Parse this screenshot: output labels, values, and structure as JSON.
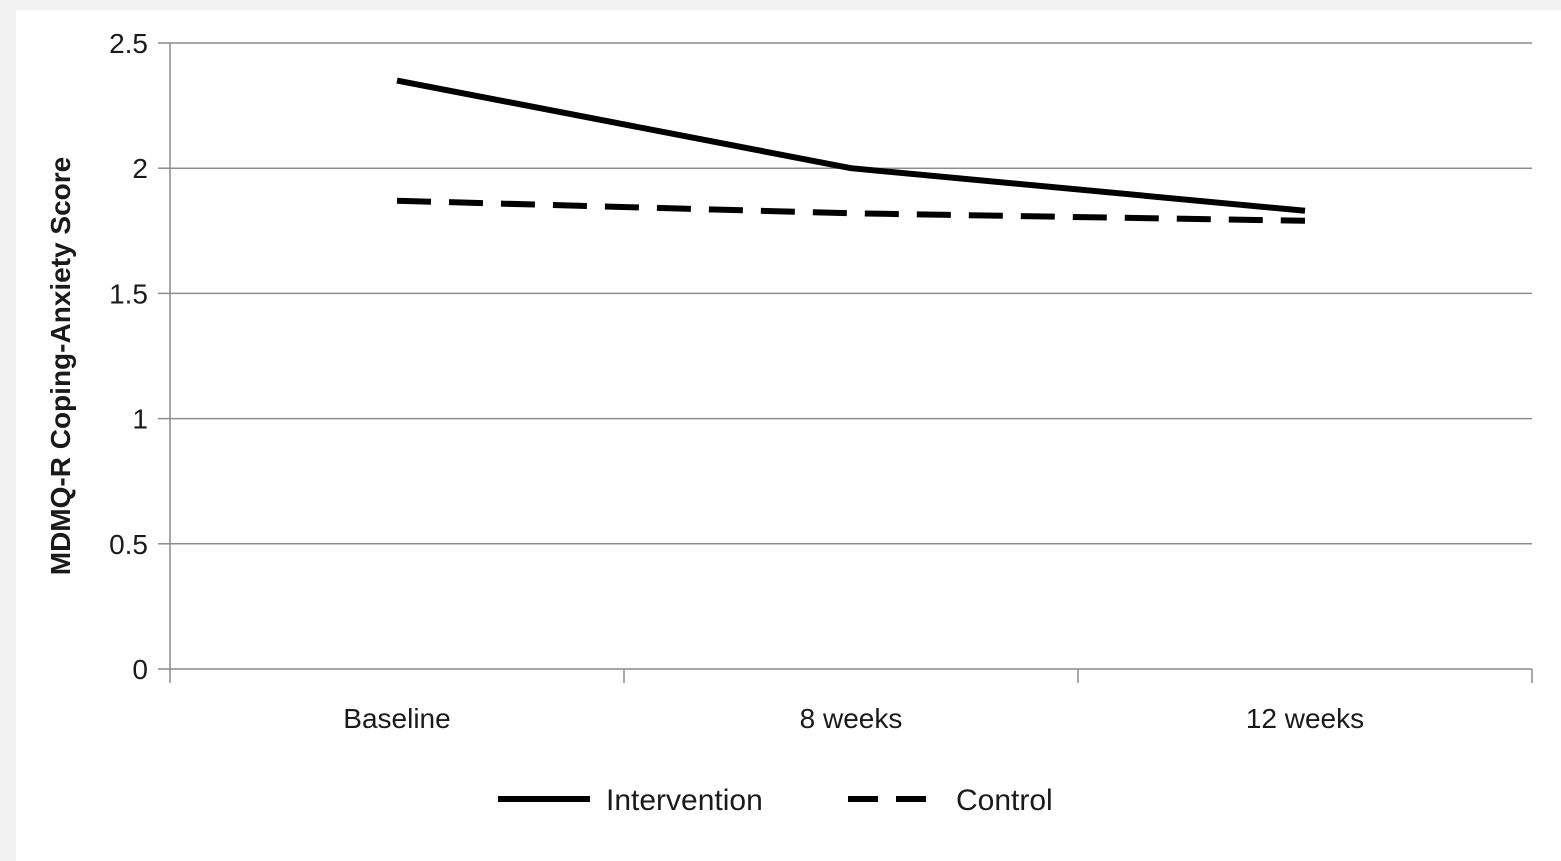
{
  "chart_data": {
    "type": "line",
    "categories": [
      "Baseline",
      "8 weeks",
      "12 weeks"
    ],
    "series": [
      {
        "name": "Intervention",
        "values": [
          2.35,
          2.0,
          1.83
        ],
        "style": "solid",
        "color": "#000000"
      },
      {
        "name": "Control",
        "values": [
          1.87,
          1.82,
          1.79
        ],
        "style": "dashed",
        "color": "#000000"
      }
    ],
    "title": "",
    "xlabel": "",
    "ylabel": "MDMQ-R Coping-Anxiety Score",
    "ylim": [
      0,
      2.5
    ],
    "yticks": [
      "0",
      "0.5",
      "1",
      "1.5",
      "2",
      "2.5"
    ],
    "grid": "horizontal",
    "legend_position": "bottom"
  }
}
